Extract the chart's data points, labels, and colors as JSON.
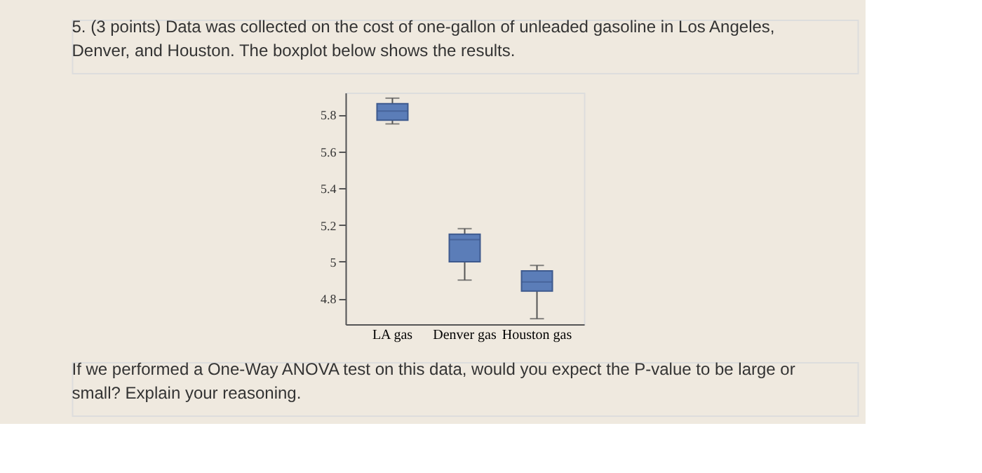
{
  "chart_data": {
    "type": "box",
    "title": "5. (3 points) Data was collected on the cost of one-gallon of unleaded gasoline in Los Angeles, Denver, and Houston. The boxplot below shows the results.",
    "categories": [
      "LA gas",
      "Denver gas",
      "Houston gas"
    ],
    "boxes": [
      {
        "low": 5.75,
        "q1": 5.77,
        "median": 5.82,
        "q3": 5.86,
        "high": 5.89
      },
      {
        "low": 4.9,
        "q1": 5.0,
        "median": 5.12,
        "q3": 5.15,
        "high": 5.18
      },
      {
        "low": 4.69,
        "q1": 4.84,
        "median": 4.89,
        "q3": 4.95,
        "high": 4.98
      }
    ],
    "color": "#5b7db8",
    "ylim": [
      4.66,
      5.92
    ],
    "yticks": [
      4.8,
      5,
      5.2,
      5.4,
      5.6,
      5.8
    ],
    "grid": false,
    "annotations": [
      "If we performed a One-Way ANOVA test on this data, would you expect the P-value to be large or small? Explain your reasoning."
    ]
  }
}
